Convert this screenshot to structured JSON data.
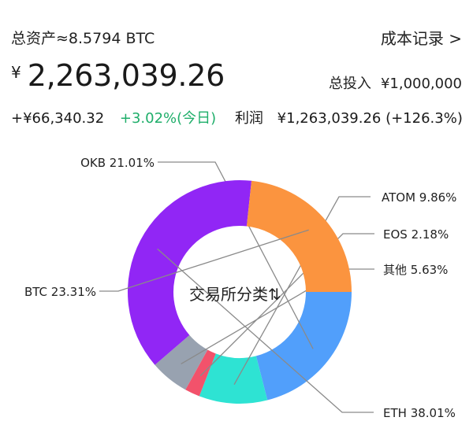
{
  "header": {
    "total_assets": "总资产≈8.5794 BTC",
    "cost_record_link": "成本记录 >"
  },
  "balance": {
    "currency_symbol": "¥",
    "amount": "2,263,039.26"
  },
  "investment": {
    "label": "总投入",
    "value": "¥1,000,000"
  },
  "today": {
    "change": "+¥66,340.32",
    "percent": "+3.02%(今日)"
  },
  "profit": {
    "label": "利润",
    "value": "¥1,263,039.26 (+126.3%)"
  },
  "chart_center_label": "交易所分类⇅",
  "chart_data": {
    "type": "pie",
    "donut": true,
    "categories": [
      "OKB",
      "ATOM",
      "EOS",
      "其他",
      "ETH",
      "BTC"
    ],
    "values": [
      21.01,
      9.86,
      2.18,
      5.63,
      38.01,
      23.31
    ],
    "labels": [
      "OKB  21.01%",
      "ATOM  9.86%",
      "EOS  2.18%",
      "其他  5.63%",
      "ETH  38.01%",
      "BTC  23.31%"
    ],
    "colors": [
      "#519ffb",
      "#2ee3d3",
      "#f2526b",
      "#98a2b0",
      "#9126f5",
      "#fb943f"
    ],
    "start_angle_deg": 90,
    "direction": "clockwise"
  }
}
